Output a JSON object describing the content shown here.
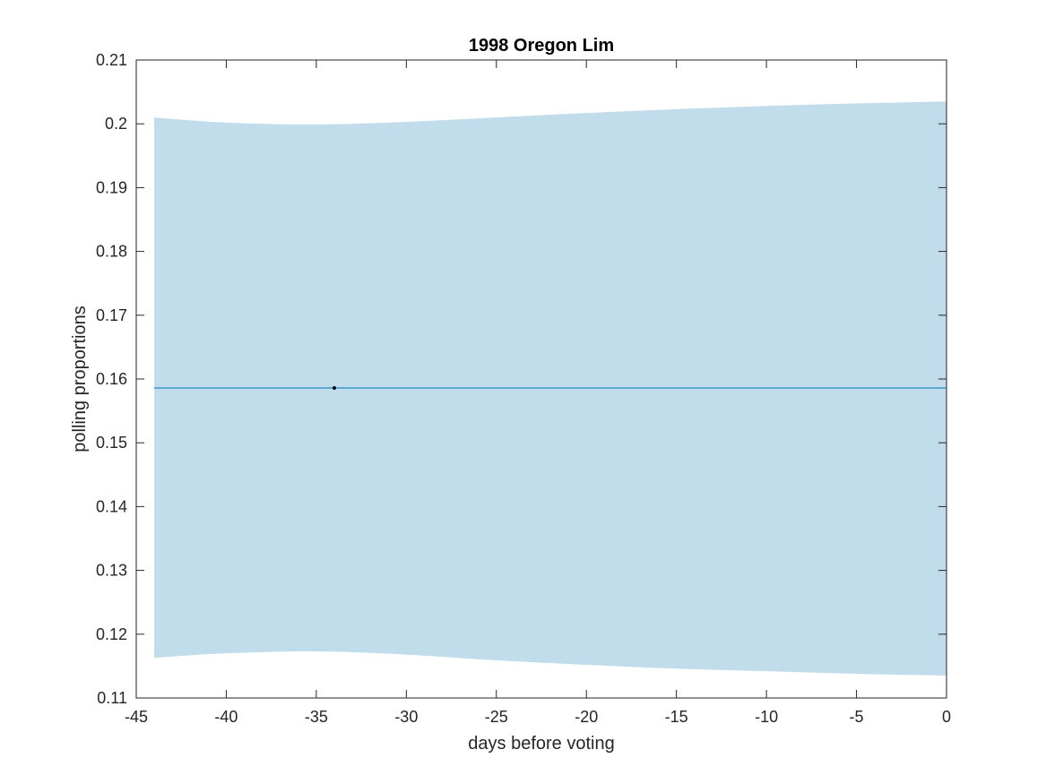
{
  "chart_data": {
    "type": "line",
    "title": "1998 Oregon Lim",
    "xlabel": "days before voting",
    "ylabel": "polling proportions",
    "xlim": [
      -45,
      0
    ],
    "ylim": [
      0.11,
      0.21
    ],
    "xticks": [
      -45,
      -40,
      -35,
      -30,
      -25,
      -20,
      -15,
      -10,
      -5,
      0
    ],
    "xtick_labels": [
      "-45",
      "-40",
      "-35",
      "-30",
      "-25",
      "-20",
      "-15",
      "-10",
      "-5",
      "0"
    ],
    "yticks": [
      0.11,
      0.12,
      0.13,
      0.14,
      0.15,
      0.16,
      0.17,
      0.18,
      0.19,
      0.2,
      0.21
    ],
    "ytick_labels": [
      "0.11",
      "0.12",
      "0.13",
      "0.14",
      "0.15",
      "0.16",
      "0.17",
      "0.18",
      "0.19",
      "0.2",
      "0.21"
    ],
    "grid": false,
    "band": {
      "x": [
        -44,
        -40,
        -35,
        -30,
        -25,
        -20,
        -15,
        -10,
        -5,
        0
      ],
      "upper": [
        0.201,
        0.2002,
        0.1999,
        0.2003,
        0.201,
        0.2017,
        0.2023,
        0.2028,
        0.2032,
        0.2035
      ],
      "lower": [
        0.1163,
        0.117,
        0.1173,
        0.1168,
        0.1159,
        0.1152,
        0.1146,
        0.1142,
        0.1138,
        0.1135
      ],
      "color": "#c1ddeb"
    },
    "line": {
      "x": [
        -44,
        0
      ],
      "y": [
        0.1586,
        0.1586
      ],
      "color": "#0072bd"
    },
    "points": [
      {
        "x": -34,
        "y": 0.1586
      }
    ],
    "point_color": "#000000"
  }
}
